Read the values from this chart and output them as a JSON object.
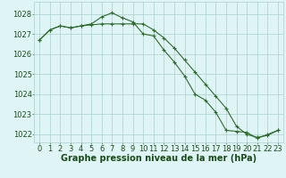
{
  "series1": {
    "x": [
      0,
      1,
      2,
      3,
      4,
      5,
      6,
      7,
      8,
      9,
      10,
      11,
      12,
      13,
      14,
      15,
      16,
      17,
      18,
      19,
      20,
      21,
      22,
      23
    ],
    "y": [
      1026.7,
      1027.2,
      1027.4,
      1027.3,
      1027.4,
      1027.45,
      1027.5,
      1027.5,
      1027.5,
      1027.5,
      1027.5,
      1027.2,
      1026.8,
      1026.3,
      1025.7,
      1025.1,
      1024.5,
      1023.9,
      1023.3,
      1022.4,
      1022.0,
      1021.85,
      1021.95,
      1022.2
    ],
    "color": "#2d6a2d"
  },
  "series2": {
    "x": [
      0,
      1,
      2,
      3,
      4,
      5,
      6,
      7,
      8,
      9,
      10,
      11,
      12,
      13,
      14,
      15,
      16,
      17,
      18,
      19,
      20,
      21,
      22,
      23
    ],
    "y": [
      1026.7,
      1027.2,
      1027.4,
      1027.3,
      1027.4,
      1027.5,
      1027.85,
      1028.05,
      1027.8,
      1027.6,
      1027.0,
      1026.9,
      1026.2,
      1025.6,
      1024.9,
      1024.0,
      1023.7,
      1023.1,
      1022.2,
      1022.15,
      1022.1,
      1021.8,
      1022.0,
      1022.2
    ],
    "color": "#2d6a2d"
  },
  "bg_color": "#dff5f5",
  "grid_color": "#aacfcf",
  "line_color": "#2d6a2d",
  "xlabel": "Graphe pression niveau de la mer (hPa)",
  "ylim_min": 1021.6,
  "ylim_max": 1028.6,
  "yticks": [
    1022,
    1023,
    1024,
    1025,
    1026,
    1027,
    1028
  ],
  "xticks": [
    0,
    1,
    2,
    3,
    4,
    5,
    6,
    7,
    8,
    9,
    10,
    11,
    12,
    13,
    14,
    15,
    16,
    17,
    18,
    19,
    20,
    21,
    22,
    23
  ],
  "text_color": "#1a4a1a",
  "xlabel_fontsize": 7,
  "tick_fontsize": 6,
  "linewidth": 0.8,
  "markersize": 3.5,
  "figwidth": 3.2,
  "figheight": 2.0,
  "dpi": 100
}
